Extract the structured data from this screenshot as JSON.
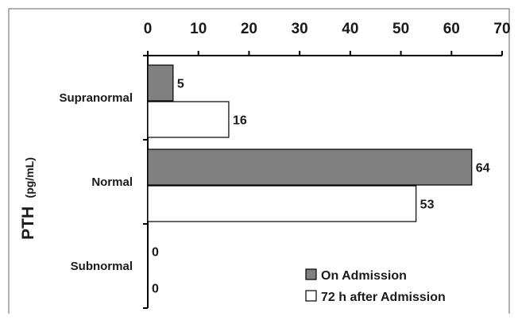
{
  "chart_data": {
    "type": "bar",
    "orientation": "horizontal",
    "categories": [
      "Supranormal",
      "Normal",
      "Subnormal"
    ],
    "series": [
      {
        "name": "On Admission",
        "values": [
          5,
          64,
          0
        ],
        "color": "#808080"
      },
      {
        "name": "72 h after Admission",
        "values": [
          16,
          53,
          0
        ],
        "color": "#ffffff"
      }
    ],
    "xticks": [
      "0",
      "10",
      "20",
      "30",
      "40",
      "50",
      "60",
      "70"
    ],
    "xlim": [
      0,
      70
    ],
    "ylabel": "PTH",
    "ylabel_unit": "(pg/mL)",
    "legend_position": "bottom-right",
    "grid": false
  }
}
